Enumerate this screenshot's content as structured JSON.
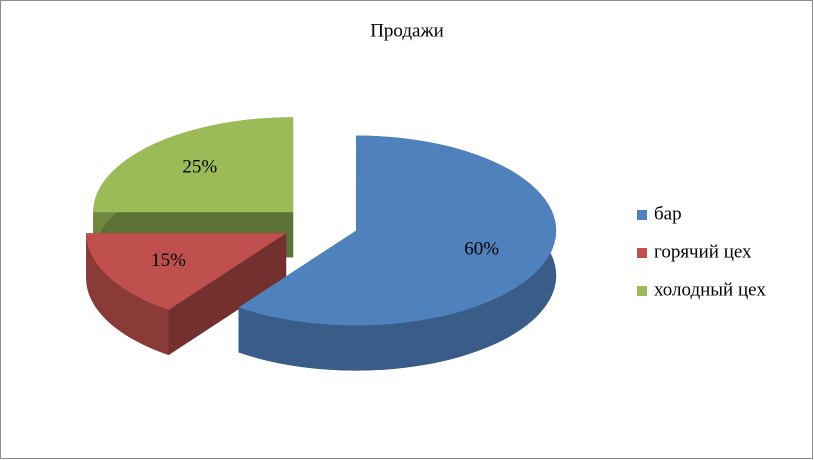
{
  "chart_data": {
    "type": "pie",
    "title": "Продажи",
    "categories": [
      "бар",
      "горячий цех",
      "холодный цех"
    ],
    "values": [
      60,
      15,
      25
    ],
    "value_labels": [
      "60%",
      "15%",
      "25%"
    ],
    "colors": [
      "#4f81bd",
      "#c0504d",
      "#9bbb59"
    ],
    "legend": "right"
  }
}
